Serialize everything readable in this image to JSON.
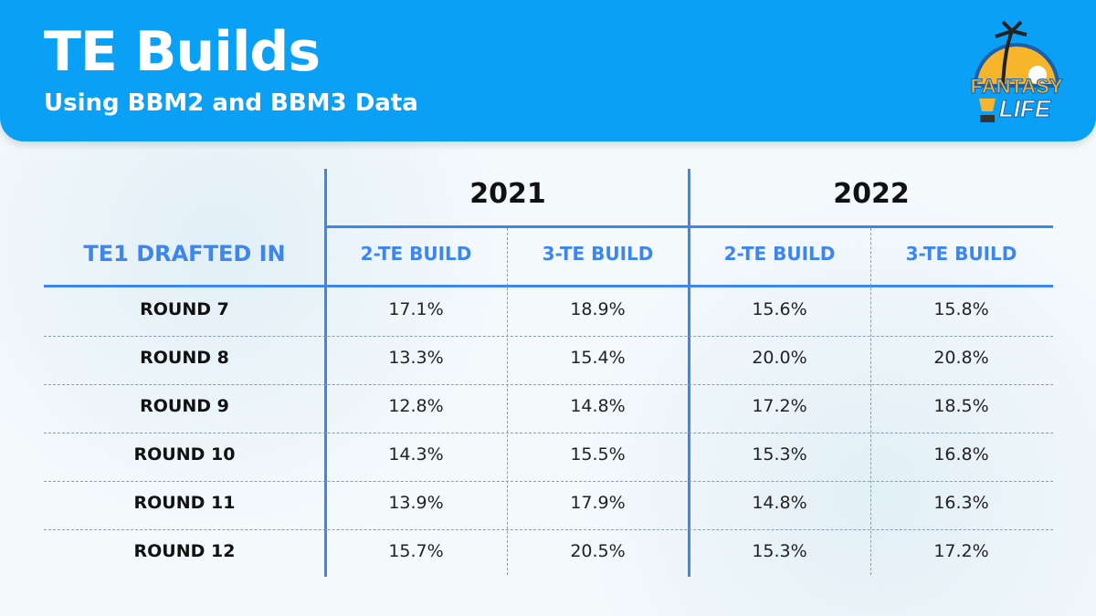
{
  "header": {
    "title": "TE Builds",
    "subtitle": "Using BBM2 and BBM3 Data",
    "logo_text": "FANTASY LIFE"
  },
  "colors": {
    "header_bg": "#0aa0f5",
    "accent": "#3d86f0"
  },
  "chart_data": {
    "type": "table",
    "row_header": "TE1 DRAFTED IN",
    "years": [
      "2021",
      "2022"
    ],
    "columns": [
      "2-TE BUILD",
      "3-TE BUILD",
      "2-TE BUILD",
      "3-TE BUILD"
    ],
    "rows": [
      {
        "label": "ROUND 7",
        "values": [
          "17.1%",
          "18.9%",
          "15.6%",
          "15.8%"
        ]
      },
      {
        "label": "ROUND 8",
        "values": [
          "13.3%",
          "15.4%",
          "20.0%",
          "20.8%"
        ]
      },
      {
        "label": "ROUND 9",
        "values": [
          "12.8%",
          "14.8%",
          "17.2%",
          "18.5%"
        ]
      },
      {
        "label": "ROUND 10",
        "values": [
          "14.3%",
          "15.5%",
          "15.3%",
          "16.8%"
        ]
      },
      {
        "label": "ROUND 11",
        "values": [
          "13.9%",
          "17.9%",
          "14.8%",
          "16.3%"
        ]
      },
      {
        "label": "ROUND 12",
        "values": [
          "15.7%",
          "20.5%",
          "15.3%",
          "17.2%"
        ]
      }
    ]
  }
}
